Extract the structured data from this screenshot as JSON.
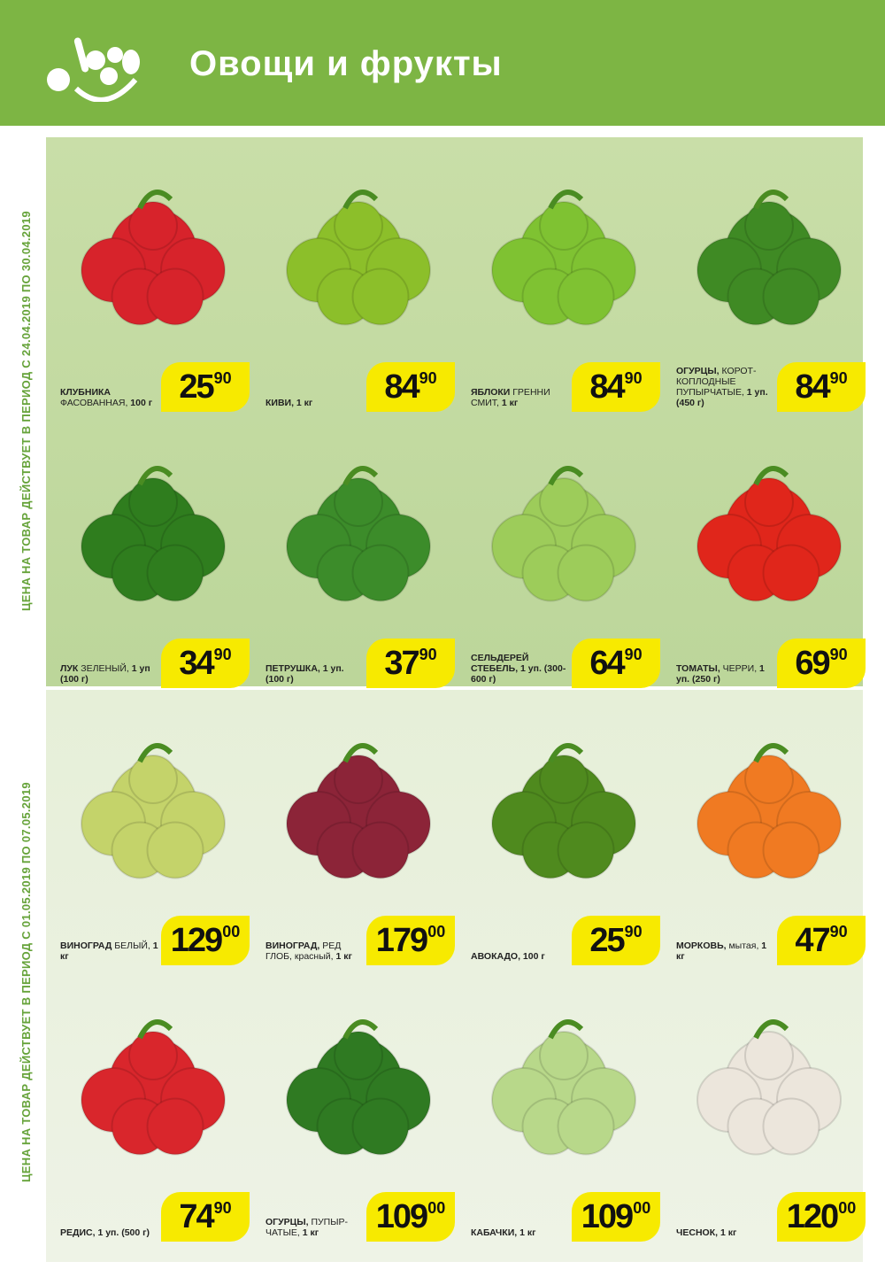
{
  "header": {
    "title": "Овощи и фрукты",
    "logo_icon": "vegetable-bowl-icon",
    "bg_color": "#7db544"
  },
  "sections": [
    {
      "validity": "ЦЕНА НА ТОВАР ДЕЙСТВУЕТ В ПЕРИОД С 24.04.2019 ПО 30.04.2019",
      "products": [
        {
          "name_bold": "КЛУБНИКА",
          "name_rest": " ФАСОВАННАЯ,",
          "name_tail": " 100 г",
          "price_int": "25",
          "price_dec": "90",
          "image": "strawberry-image",
          "color": "#d7232b"
        },
        {
          "name_bold": "КИВИ, 1 кг",
          "name_rest": "",
          "name_tail": "",
          "price_int": "84",
          "price_dec": "90",
          "image": "kiwi-image",
          "color": "#8cbf2a"
        },
        {
          "name_bold": "ЯБЛОКИ",
          "name_rest": " ГРЕННИ СМИТ,",
          "name_tail": " 1 кг",
          "price_int": "84",
          "price_dec": "90",
          "image": "green-apples-image",
          "color": "#7fc232"
        },
        {
          "name_bold": "ОГУРЦЫ,",
          "name_rest": " КОРОТ-КОПЛОДНЫЕ ПУПЫРЧАТЫЕ,",
          "name_tail": " 1 уп. (450 г)",
          "price_int": "84",
          "price_dec": "90",
          "image": "cucumbers-image",
          "color": "#3f8a24"
        },
        {
          "name_bold": "ЛУК",
          "name_rest": " ЗЕЛЕНЫЙ,",
          "name_tail": " 1 уп (100 г)",
          "price_int": "34",
          "price_dec": "90",
          "image": "green-onion-image",
          "color": "#2f7d1e"
        },
        {
          "name_bold": "ПЕТРУШКА, 1 уп. (100 г)",
          "name_rest": "",
          "name_tail": "",
          "price_int": "37",
          "price_dec": "90",
          "image": "parsley-image",
          "color": "#3c8c2a"
        },
        {
          "name_bold": "СЕЛЬДЕРЕЙ СТЕБЕЛЬ, 1 уп. (300-600 г)",
          "name_rest": "",
          "name_tail": "",
          "price_int": "64",
          "price_dec": "90",
          "image": "celery-image",
          "color": "#9dcc5a"
        },
        {
          "name_bold": "ТОМАТЫ,",
          "name_rest": " ЧЕРРИ,",
          "name_tail": " 1 уп. (250 г)",
          "price_int": "69",
          "price_dec": "90",
          "image": "cherry-tomatoes-image",
          "color": "#e0261b"
        }
      ]
    },
    {
      "validity": "ЦЕНА НА ТОВАР ДЕЙСТВУЕТ В ПЕРИОД С 01.05.2019 ПО 07.05.2019",
      "products": [
        {
          "name_bold": "ВИНОГРАД",
          "name_rest": " БЕЛЫЙ,",
          "name_tail": " 1 кг",
          "price_int": "129",
          "price_dec": "00",
          "image": "white-grapes-image",
          "color": "#c4d36a"
        },
        {
          "name_bold": "ВИНОГРАД,",
          "name_rest": " РЕД ГЛОБ, красный,",
          "name_tail": " 1 кг",
          "price_int": "179",
          "price_dec": "00",
          "image": "red-grapes-image",
          "color": "#8c2438"
        },
        {
          "name_bold": "АВОКАДО, 100 г",
          "name_rest": "",
          "name_tail": "",
          "price_int": "25",
          "price_dec": "90",
          "image": "avocado-image",
          "color": "#4f8a1e"
        },
        {
          "name_bold": "МОРКОВЬ,",
          "name_rest": " мытая,",
          "name_tail": " 1 кг",
          "price_int": "47",
          "price_dec": "90",
          "image": "carrots-image",
          "color": "#f07a22"
        },
        {
          "name_bold": "РЕДИС, 1 уп. (500 г)",
          "name_rest": "",
          "name_tail": "",
          "price_int": "74",
          "price_dec": "90",
          "image": "radish-image",
          "color": "#d9262c"
        },
        {
          "name_bold": "ОГУРЦЫ,",
          "name_rest": " ПУПЫР-ЧАТЫЕ,",
          "name_tail": " 1 кг",
          "price_int": "109",
          "price_dec": "00",
          "image": "cucumbers-image",
          "color": "#2f7a22"
        },
        {
          "name_bold": "КАБАЧКИ, 1 кг",
          "name_rest": "",
          "name_tail": "",
          "price_int": "109",
          "price_dec": "00",
          "image": "zucchini-image",
          "color": "#b8d88a"
        },
        {
          "name_bold": "ЧЕСНОК, 1 кг",
          "name_rest": "",
          "name_tail": "",
          "price_int": "120",
          "price_dec": "00",
          "image": "garlic-image",
          "color": "#ece6dc"
        }
      ]
    }
  ],
  "colors": {
    "price_tag": "#f7ea00",
    "panel_1": "#c5dba3",
    "panel_2": "#e9f1de"
  }
}
